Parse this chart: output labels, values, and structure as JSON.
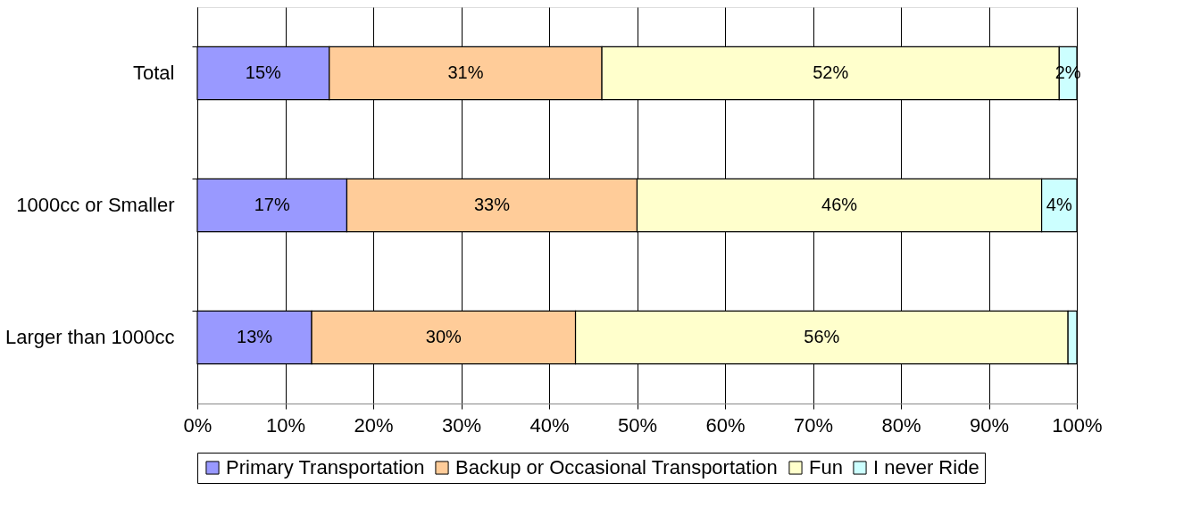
{
  "chart_data": {
    "type": "bar",
    "orientation": "horizontal",
    "stacked": true,
    "categories": [
      "Total",
      "1000cc or Smaller",
      "Larger than 1000cc"
    ],
    "series": [
      {
        "name": "Primary Transportation",
        "color": "#9999ff",
        "values": [
          15,
          17,
          13
        ],
        "value_labels": [
          "15%",
          "17%",
          "13%"
        ]
      },
      {
        "name": "Backup or Occasional Transportation",
        "color": "#ffcc99",
        "values": [
          31,
          33,
          30
        ],
        "value_labels": [
          "31%",
          "33%",
          "30%"
        ]
      },
      {
        "name": "Fun",
        "color": "#ffffcc",
        "values": [
          52,
          46,
          56
        ],
        "value_labels": [
          "52%",
          "46%",
          "56%"
        ]
      },
      {
        "name": "I never Ride",
        "color": "#ccffff",
        "values": [
          2,
          4,
          1
        ],
        "value_labels": [
          "2%",
          "4%",
          null
        ]
      }
    ],
    "xlim": [
      0,
      100
    ],
    "xticks": [
      {
        "value": 0,
        "label": "0%"
      },
      {
        "value": 10,
        "label": "10%"
      },
      {
        "value": 20,
        "label": "20%"
      },
      {
        "value": 30,
        "label": "30%"
      },
      {
        "value": 40,
        "label": "40%"
      },
      {
        "value": 50,
        "label": "50%"
      },
      {
        "value": 60,
        "label": "60%"
      },
      {
        "value": 70,
        "label": "70%"
      },
      {
        "value": 80,
        "label": "80%"
      },
      {
        "value": 90,
        "label": "90%"
      },
      {
        "value": 100,
        "label": "100%"
      }
    ],
    "grid": "x",
    "legend": "bottom"
  }
}
